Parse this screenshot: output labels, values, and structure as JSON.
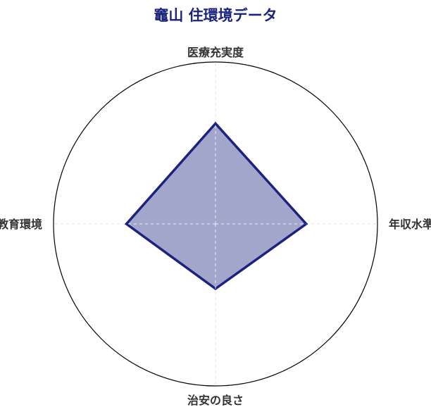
{
  "chart_data": {
    "type": "radar",
    "title": "竈山 住環境データ",
    "categories": [
      "医療充実度",
      "年収水準",
      "治安の良さ",
      "教育環境"
    ],
    "values": [
      0.62,
      0.56,
      0.4,
      0.55
    ],
    "range": [
      0,
      1
    ],
    "grid": true,
    "colors": {
      "line": "#1a237e",
      "fill": "#a1a6ca",
      "title": "#1a237e",
      "label": "#333333",
      "outer_circle": "#000000"
    }
  }
}
